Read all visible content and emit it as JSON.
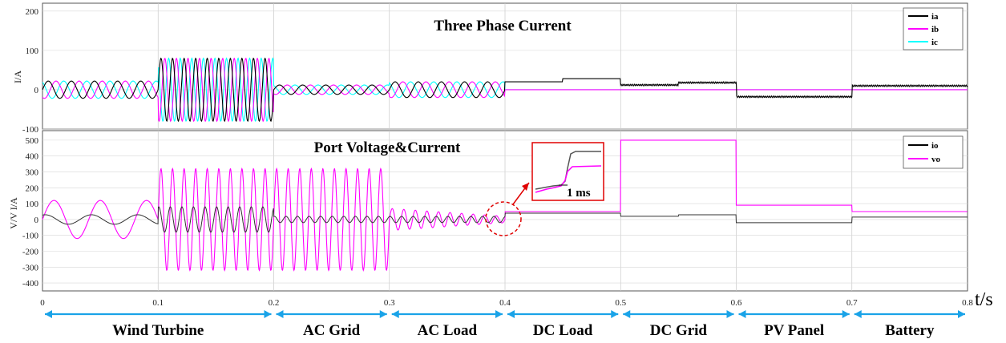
{
  "chart_data": [
    {
      "type": "line",
      "title": "Three Phase Current",
      "ylabel": "I/A",
      "xlabel": "t/s",
      "xlim": [
        0,
        0.8
      ],
      "ylim": [
        -100,
        220
      ],
      "yticks": [
        "200",
        "100",
        "0",
        "-100"
      ],
      "grid": true,
      "legend_position": "top-right",
      "series": [
        {
          "name": "ia",
          "color": "#000000"
        },
        {
          "name": "ib",
          "color": "#ff00ff"
        },
        {
          "name": "ic",
          "color": "#00ffff"
        }
      ],
      "segments": [
        {
          "label": "Wind Turbine",
          "start": 0.0,
          "end": 0.1,
          "amplitude": 22,
          "frequency_hz": 50
        },
        {
          "label": "Wind Turbine",
          "start": 0.1,
          "end": 0.2,
          "amplitude": 80,
          "frequency_hz": 100
        },
        {
          "label": "AC Grid",
          "start": 0.2,
          "end": 0.3,
          "amplitude": 12,
          "frequency_hz": 50
        },
        {
          "label": "AC Load",
          "start": 0.3,
          "end": 0.4,
          "amplitude": 20,
          "frequency_hz": 50
        },
        {
          "label": "DC Load",
          "start": 0.4,
          "end": 0.5,
          "ia_dc": [
            20,
            28
          ],
          "ib_dc": 0,
          "ic_dc": 0
        },
        {
          "label": "DC Grid",
          "start": 0.5,
          "end": 0.6,
          "ia_dc": [
            12,
            18
          ],
          "ib_dc": 0,
          "ic_dc": 0
        },
        {
          "label": "PV Panel",
          "start": 0.6,
          "end": 0.7,
          "ia_dc": -18,
          "ib_dc": 0,
          "ic_dc": 0
        },
        {
          "label": "Battery",
          "start": 0.7,
          "end": 0.8,
          "ia_dc": 10,
          "ib_dc": 0,
          "ic_dc": 0
        }
      ]
    },
    {
      "type": "line",
      "title": "Port Voltage&Current",
      "ylabel": "V/V    I/A",
      "xlabel": "t/s",
      "xlim": [
        0,
        0.8
      ],
      "ylim": [
        -450,
        560
      ],
      "yticks": [
        "500",
        "400",
        "300",
        "200",
        "100",
        "0",
        "-100",
        "-200",
        "-300",
        "-400"
      ],
      "grid": true,
      "legend_position": "top-right",
      "series": [
        {
          "name": "io",
          "color": "#000000"
        },
        {
          "name": "vo",
          "color": "#ff00ff"
        }
      ],
      "segments": [
        {
          "label": "Wind Turbine",
          "start": 0.0,
          "end": 0.1,
          "vo_amplitude": 120,
          "io_amplitude": 30,
          "frequency_hz": 25
        },
        {
          "label": "Wind Turbine",
          "start": 0.1,
          "end": 0.2,
          "vo_amplitude": 320,
          "io_amplitude": 80,
          "frequency_hz": 100
        },
        {
          "label": "AC Grid",
          "start": 0.2,
          "end": 0.3,
          "vo_amplitude": 320,
          "io_amplitude": 20,
          "frequency_hz": 100
        },
        {
          "label": "AC Load",
          "start": 0.3,
          "end": 0.4,
          "vo_amplitude": [
            70,
            20
          ],
          "io_amplitude": 20,
          "frequency_hz": 100
        },
        {
          "label": "DC Load",
          "start": 0.4,
          "end": 0.5,
          "vo_dc": 50,
          "io_dc": 40
        },
        {
          "label": "DC Grid",
          "start": 0.5,
          "end": 0.6,
          "vo_dc": 500,
          "io_dc": [
            20,
            30
          ]
        },
        {
          "label": "PV Panel",
          "start": 0.6,
          "end": 0.7,
          "vo_dc": 90,
          "io_dc": -20
        },
        {
          "label": "Battery",
          "start": 0.7,
          "end": 0.8,
          "vo_dc": 50,
          "io_dc": 15
        }
      ]
    }
  ],
  "x_axis": {
    "unit_label": "t/s",
    "ticks": [
      "0",
      "0.1",
      "0.2",
      "0.3",
      "0.4",
      "0.5",
      "0.6",
      "0.7",
      "0.8"
    ]
  },
  "segment_labels": [
    "Wind Turbine",
    "AC Grid",
    "AC Load",
    "DC Load",
    "DC Grid",
    "PV Panel",
    "Battery"
  ],
  "inset": {
    "annotation": "1 ms"
  },
  "colors": {
    "ia": "#000000",
    "ib": "#ff00ff",
    "ic": "#00ffff",
    "arrow": "#1aa3e8",
    "highlight": "#e00000",
    "frame": "#555555"
  }
}
